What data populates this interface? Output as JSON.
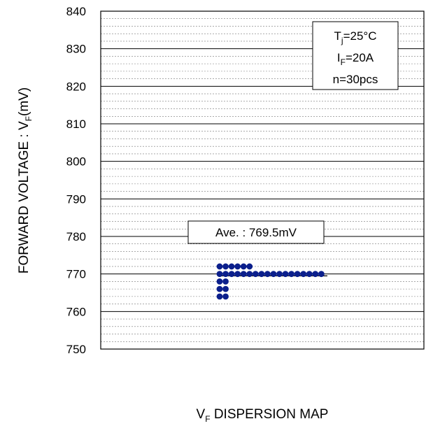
{
  "chart_data": {
    "type": "scatter",
    "title": "",
    "xlabel": "V_F DISPERSION MAP",
    "ylabel": "FORWARD VOLTAGE : V_F(mV)",
    "ylim": [
      750,
      840
    ],
    "yticks": [
      "750",
      "760",
      "770",
      "780",
      "790",
      "800",
      "810",
      "820",
      "830",
      "840"
    ],
    "grid": {
      "major": true,
      "minor": true
    },
    "conditions": {
      "tj_main": "T",
      "tj_sub": "j",
      "tj_value": "=25°C",
      "if_main": "I",
      "if_sub": "F",
      "if_value": "=20A",
      "n": "n=30pcs"
    },
    "average": {
      "label": "Ave. : 769.5mV",
      "value": 769.5
    },
    "points": [
      {
        "col": 0,
        "y": 764
      },
      {
        "col": 1,
        "y": 764
      },
      {
        "col": 0,
        "y": 766
      },
      {
        "col": 1,
        "y": 766
      },
      {
        "col": 0,
        "y": 768
      },
      {
        "col": 1,
        "y": 768
      },
      {
        "col": 0,
        "y": 770
      },
      {
        "col": 1,
        "y": 770
      },
      {
        "col": 2,
        "y": 770
      },
      {
        "col": 3,
        "y": 770
      },
      {
        "col": 4,
        "y": 770
      },
      {
        "col": 5,
        "y": 770
      },
      {
        "col": 6,
        "y": 770
      },
      {
        "col": 7,
        "y": 770
      },
      {
        "col": 8,
        "y": 770
      },
      {
        "col": 9,
        "y": 770
      },
      {
        "col": 10,
        "y": 770
      },
      {
        "col": 11,
        "y": 770
      },
      {
        "col": 12,
        "y": 770
      },
      {
        "col": 13,
        "y": 770
      },
      {
        "col": 14,
        "y": 770
      },
      {
        "col": 15,
        "y": 770
      },
      {
        "col": 16,
        "y": 770
      },
      {
        "col": 17,
        "y": 770
      },
      {
        "col": 0,
        "y": 772
      },
      {
        "col": 1,
        "y": 772
      },
      {
        "col": 2,
        "y": 772
      },
      {
        "col": 3,
        "y": 772
      },
      {
        "col": 4,
        "y": 772
      },
      {
        "col": 5,
        "y": 772
      }
    ],
    "marker_color": "#0b1f8c",
    "line_color": "#000000"
  }
}
